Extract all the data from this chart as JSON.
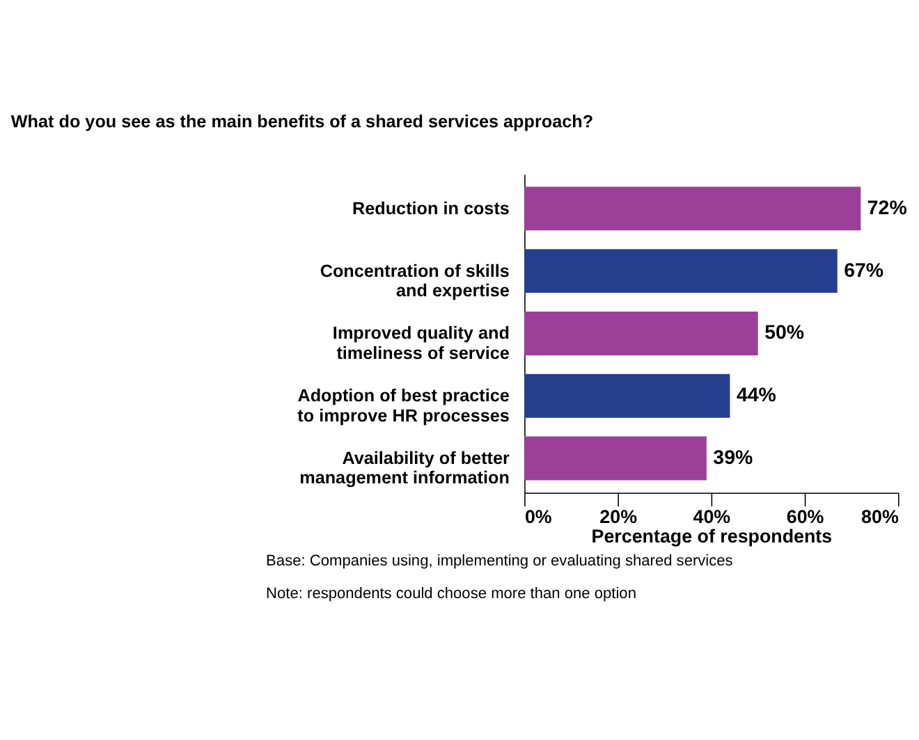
{
  "chart_data": {
    "type": "bar",
    "orientation": "horizontal",
    "title": "What do you see as the main benefits of a shared services approach?",
    "categories": [
      "Reduction in costs",
      "Concentration of skills and expertise",
      "Improved quality and timeliness of service",
      "Adoption of best practice to improve HR processes",
      "Availability of better management information"
    ],
    "values": [
      72,
      67,
      50,
      44,
      39
    ],
    "colors": [
      "#9c3f98",
      "#273f8e",
      "#9c3f98",
      "#273f8e",
      "#9c3f98"
    ],
    "value_labels": [
      "72%",
      "67%",
      "50%",
      "44%",
      "39%"
    ],
    "xlim": [
      0,
      80
    ],
    "xticks": [
      {
        "value": 0,
        "label": "0%"
      },
      {
        "value": 20,
        "label": "20%"
      },
      {
        "value": 40,
        "label": "40%"
      },
      {
        "value": 60,
        "label": "60%"
      },
      {
        "value": 80,
        "label": "80%"
      }
    ],
    "xlabel": "Percentage of respondents",
    "grid": false,
    "annotations": [
      "Base: Companies using, implementing or evaluating shared services",
      "Note: respondents could choose more than one option"
    ]
  }
}
